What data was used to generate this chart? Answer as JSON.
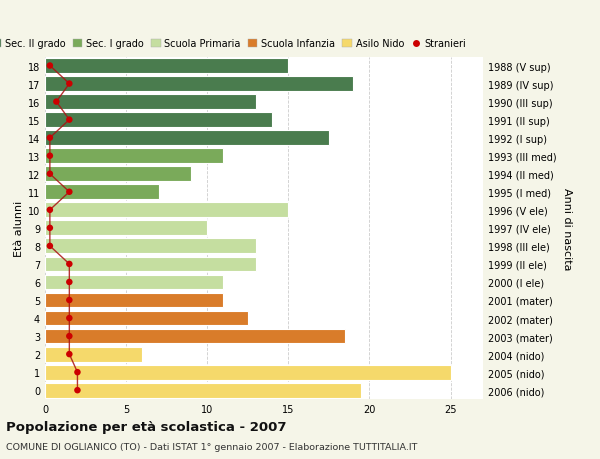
{
  "ages": [
    18,
    17,
    16,
    15,
    14,
    13,
    12,
    11,
    10,
    9,
    8,
    7,
    6,
    5,
    4,
    3,
    2,
    1,
    0
  ],
  "right_labels": [
    "1988 (V sup)",
    "1989 (IV sup)",
    "1990 (III sup)",
    "1991 (II sup)",
    "1992 (I sup)",
    "1993 (III med)",
    "1994 (II med)",
    "1995 (I med)",
    "1996 (V ele)",
    "1997 (IV ele)",
    "1998 (III ele)",
    "1999 (II ele)",
    "2000 (I ele)",
    "2001 (mater)",
    "2002 (mater)",
    "2003 (mater)",
    "2004 (nido)",
    "2005 (nido)",
    "2006 (nido)"
  ],
  "bar_values": [
    15,
    19,
    13,
    14,
    17.5,
    11,
    9,
    7,
    15,
    10,
    13,
    13,
    11,
    11,
    12.5,
    18.5,
    6,
    25,
    19.5
  ],
  "bar_colors": [
    "#4a7c4e",
    "#4a7c4e",
    "#4a7c4e",
    "#4a7c4e",
    "#4a7c4e",
    "#7aaa5a",
    "#7aaa5a",
    "#7aaa5a",
    "#c5dea0",
    "#c5dea0",
    "#c5dea0",
    "#c5dea0",
    "#c5dea0",
    "#d97c2a",
    "#d97c2a",
    "#d97c2a",
    "#f5d96b",
    "#f5d96b",
    "#f5d96b"
  ],
  "stranieri_values": [
    0.3,
    1.5,
    0.7,
    1.5,
    0.3,
    0.3,
    0.3,
    1.5,
    0.3,
    0.3,
    0.3,
    1.5,
    1.5,
    1.5,
    1.5,
    1.5,
    1.5,
    2.0,
    2.0
  ],
  "legend_labels": [
    "Sec. II grado",
    "Sec. I grado",
    "Scuola Primaria",
    "Scuola Infanzia",
    "Asilo Nido",
    "Stranieri"
  ],
  "legend_colors": [
    "#4a7c4e",
    "#7aaa5a",
    "#c5dea0",
    "#d97c2a",
    "#f5d96b",
    "#cc0000"
  ],
  "ylabel_left": "Età alunni",
  "ylabel_right": "Anni di nascita",
  "title": "Popolazione per età scolastica - 2007",
  "subtitle": "COMUNE DI OGLIANICO (TO) - Dati ISTAT 1° gennaio 2007 - Elaborazione TUTTITALIA.IT",
  "xticks": [
    0,
    5,
    10,
    15,
    20,
    25
  ],
  "xlim": [
    0,
    27
  ],
  "background_color": "#f5f5e8",
  "plot_bg": "#ffffff",
  "grid_color": "#cccccc",
  "bar_height": 0.82
}
